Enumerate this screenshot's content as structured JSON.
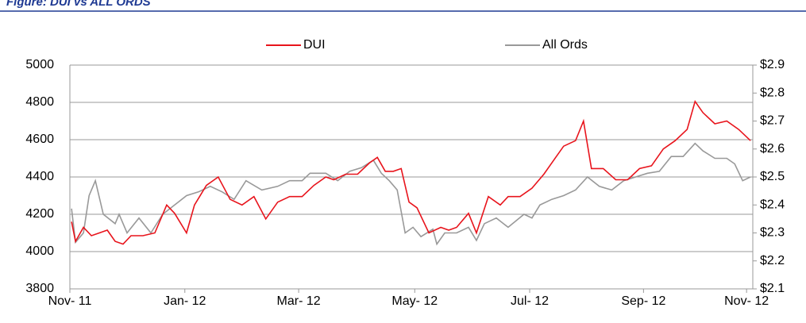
{
  "chart_data": {
    "type": "line",
    "title": "Figure: DUI vs ALL ORDS",
    "xlim": [
      0,
      12.06
    ],
    "xticks": [
      {
        "value": 0,
        "label": "Nov- 11"
      },
      {
        "value": 2.03,
        "label": "Jan- 12"
      },
      {
        "value": 4.04,
        "label": "Mar- 12"
      },
      {
        "value": 6.09,
        "label": "May- 12"
      },
      {
        "value": 8.12,
        "label": "Jul- 12"
      },
      {
        "value": 10.13,
        "label": "Sep- 12"
      },
      {
        "value": 11.95,
        "label": "Nov- 12"
      }
    ],
    "ylim": [
      3800,
      5000
    ],
    "yticks": [
      3800,
      4000,
      4200,
      4400,
      4600,
      4800,
      5000
    ],
    "y2lim": [
      2.1,
      2.9
    ],
    "y2ticks": [
      {
        "value": 2.1,
        "label": "$2.1"
      },
      {
        "value": 2.2,
        "label": "$2.2"
      },
      {
        "value": 2.3,
        "label": "$2.3"
      },
      {
        "value": 2.4,
        "label": "$2.4"
      },
      {
        "value": 2.5,
        "label": "$2.5"
      },
      {
        "value": 2.6,
        "label": "$2.6"
      },
      {
        "value": 2.7,
        "label": "$2.7"
      },
      {
        "value": 2.8,
        "label": "$2.8"
      },
      {
        "value": 2.9,
        "label": "$2.9"
      }
    ],
    "grid": true,
    "legend": "top",
    "series": [
      {
        "name": "DUI",
        "color": "#e8141c",
        "axis": "y2",
        "x": [
          0.03,
          0.1,
          0.24,
          0.38,
          0.52,
          0.66,
          0.8,
          0.94,
          1.08,
          1.29,
          1.5,
          1.71,
          1.85,
          2.06,
          2.2,
          2.41,
          2.62,
          2.83,
          3.04,
          3.25,
          3.46,
          3.67,
          3.88,
          4.1,
          4.31,
          4.52,
          4.66,
          4.87,
          5.08,
          5.29,
          5.43,
          5.57,
          5.71,
          5.85,
          5.99,
          6.13,
          6.34,
          6.55,
          6.69,
          6.83,
          7.04,
          7.18,
          7.39,
          7.6,
          7.74,
          7.95,
          8.16,
          8.37,
          8.58,
          8.72,
          8.93,
          9.07,
          9.21,
          9.42,
          9.64,
          9.85,
          10.06,
          10.27,
          10.48,
          10.69,
          10.9,
          11.04,
          11.18,
          11.39,
          11.6,
          11.81,
          12.02
        ],
        "values": [
          2.34,
          2.27,
          2.32,
          2.29,
          2.3,
          2.31,
          2.27,
          2.26,
          2.29,
          2.29,
          2.3,
          2.4,
          2.37,
          2.3,
          2.4,
          2.47,
          2.5,
          2.42,
          2.4,
          2.43,
          2.35,
          2.41,
          2.43,
          2.43,
          2.47,
          2.5,
          2.49,
          2.51,
          2.51,
          2.55,
          2.57,
          2.52,
          2.52,
          2.53,
          2.41,
          2.39,
          2.3,
          2.32,
          2.31,
          2.32,
          2.37,
          2.3,
          2.43,
          2.4,
          2.43,
          2.43,
          2.46,
          2.51,
          2.57,
          2.61,
          2.63,
          2.7,
          2.53,
          2.53,
          2.49,
          2.49,
          2.53,
          2.54,
          2.6,
          2.63,
          2.67,
          2.77,
          2.73,
          2.69,
          2.7,
          2.67,
          2.63
        ]
      },
      {
        "name": "All Ords",
        "color": "#999999",
        "axis": "y",
        "x": [
          0.03,
          0.1,
          0.24,
          0.34,
          0.45,
          0.59,
          0.8,
          0.87,
          1.01,
          1.22,
          1.43,
          1.64,
          1.85,
          2.06,
          2.27,
          2.48,
          2.69,
          2.9,
          3.11,
          3.39,
          3.67,
          3.88,
          4.1,
          4.24,
          4.52,
          4.73,
          4.94,
          5.15,
          5.36,
          5.5,
          5.64,
          5.78,
          5.92,
          6.06,
          6.2,
          6.41,
          6.48,
          6.62,
          6.83,
          7.04,
          7.18,
          7.32,
          7.53,
          7.74,
          8.02,
          8.16,
          8.3,
          8.51,
          8.72,
          8.93,
          9.14,
          9.35,
          9.57,
          9.78,
          9.99,
          10.2,
          10.41,
          10.62,
          10.83,
          11.04,
          11.18,
          11.39,
          11.6,
          11.74,
          11.88,
          12.02
        ],
        "values": [
          4230,
          4050,
          4100,
          4300,
          4380,
          4200,
          4150,
          4200,
          4100,
          4180,
          4100,
          4200,
          4250,
          4300,
          4320,
          4350,
          4320,
          4280,
          4380,
          4330,
          4350,
          4380,
          4380,
          4420,
          4420,
          4380,
          4430,
          4450,
          4490,
          4420,
          4380,
          4330,
          4100,
          4130,
          4080,
          4120,
          4040,
          4100,
          4100,
          4130,
          4060,
          4150,
          4180,
          4130,
          4200,
          4180,
          4250,
          4280,
          4300,
          4330,
          4400,
          4350,
          4330,
          4380,
          4400,
          4420,
          4430,
          4510,
          4510,
          4580,
          4540,
          4500,
          4500,
          4470,
          4380,
          4400
        ]
      }
    ]
  }
}
